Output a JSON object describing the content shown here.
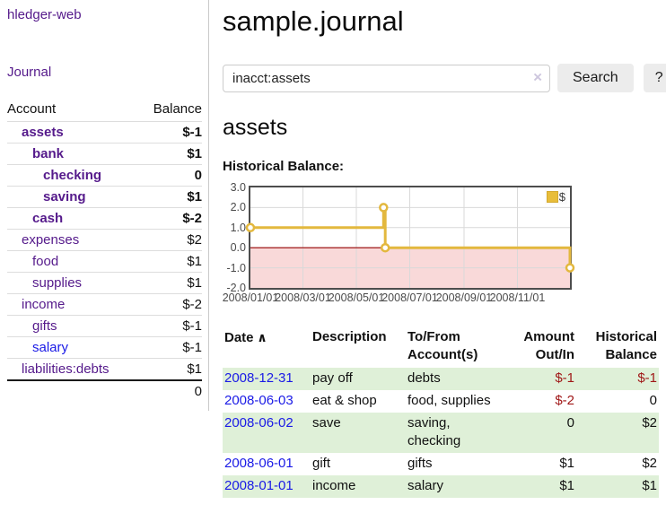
{
  "app": {
    "title": "hledger-web",
    "nav_journal": "Journal"
  },
  "sidebar": {
    "headers": {
      "account": "Account",
      "balance": "Balance"
    },
    "accounts": [
      {
        "name": "assets",
        "balance": "$-1",
        "indent": 1,
        "bold": true,
        "balance_color": "neg-strong"
      },
      {
        "name": "bank",
        "balance": "$1",
        "indent": 2,
        "bold": true
      },
      {
        "name": "checking",
        "balance": "0",
        "indent": 3,
        "bold": true
      },
      {
        "name": "saving",
        "balance": "$1",
        "indent": 3,
        "bold": true
      },
      {
        "name": "cash",
        "balance": "$-2",
        "indent": 2,
        "bold": true,
        "balance_color": "neg-strong"
      },
      {
        "name": "expenses",
        "balance": "$2",
        "indent": 1
      },
      {
        "name": "food",
        "balance": "$1",
        "indent": 2
      },
      {
        "name": "supplies",
        "balance": "$1",
        "indent": 2
      },
      {
        "name": "income",
        "balance": "$-2",
        "indent": 1,
        "balance_color": "neg-dim"
      },
      {
        "name": "gifts",
        "balance": "$-1",
        "indent": 2,
        "balance_color": "neg-dim"
      },
      {
        "name": "salary",
        "balance": "$-1",
        "indent": 2,
        "balance_color": "neg-dim",
        "link_color": "blue"
      },
      {
        "name": "liabilities:debts",
        "balance": "$1",
        "indent": 1
      }
    ],
    "total": "0"
  },
  "header": {
    "title": "sample.journal"
  },
  "search": {
    "value": "inacct:assets",
    "clear_icon": "×",
    "button": "Search",
    "help_button": "?"
  },
  "account_page": {
    "heading": "assets",
    "chart_label": "Historical Balance:"
  },
  "chart_data": {
    "type": "line",
    "step": true,
    "title": "Historical Balance:",
    "legend_label": "$",
    "legend_position": "top-right",
    "grid": true,
    "xrange": [
      "2008-01-01",
      "2008-12-31"
    ],
    "ylim": [
      -2,
      3
    ],
    "yticks": [
      "3.0",
      "2.0",
      "1.0",
      "0.0",
      "-1.0",
      "-2.0"
    ],
    "xticks": [
      {
        "label": "2008/01/01",
        "date": "2008-01-01"
      },
      {
        "label": "2008/03/01",
        "date": "2008-03-01"
      },
      {
        "label": "2008/05/01",
        "date": "2008-05-01"
      },
      {
        "label": "2008/07/01",
        "date": "2008-07-01"
      },
      {
        "label": "2008/09/01",
        "date": "2008-09-01"
      },
      {
        "label": "2008/11/01",
        "date": "2008-11-01"
      }
    ],
    "series": [
      {
        "name": "$",
        "points": [
          {
            "date": "2008-01-01",
            "value": 1
          },
          {
            "date": "2008-06-01",
            "value": 2
          },
          {
            "date": "2008-06-03",
            "value": 0
          },
          {
            "date": "2008-12-31",
            "value": -1
          }
        ]
      }
    ],
    "colors": {
      "line": "#e3b83e",
      "marker_fill": "#ffffff",
      "negative_fill": "#f9d9d9",
      "zero_line": "#990000",
      "grid": "#d9d9d9",
      "border": "#4d4d4d"
    }
  },
  "register": {
    "headers": [
      {
        "label": "Date",
        "sort_icon": "∧"
      },
      {
        "label": "Description"
      },
      {
        "label": "To/From Account(s)"
      },
      {
        "label": "Amount Out/In"
      },
      {
        "label": "Historical Balance"
      }
    ],
    "rows": [
      {
        "date": "2008-12-31",
        "description": "pay off",
        "accounts": "debts",
        "amount": "$-1",
        "balance": "$-1",
        "amount_negative": true,
        "balance_negative": true
      },
      {
        "date": "2008-06-03",
        "description": "eat & shop",
        "accounts": "food, supplies",
        "amount": "$-2",
        "balance": "0",
        "amount_negative": true,
        "balance_negative": false
      },
      {
        "date": "2008-06-02",
        "description": "save",
        "accounts": "saving, checking",
        "amount": "0",
        "balance": "$2",
        "amount_negative": false,
        "balance_negative": false
      },
      {
        "date": "2008-06-01",
        "description": "gift",
        "accounts": "gifts",
        "amount": "$1",
        "balance": "$2",
        "amount_negative": false,
        "balance_negative": false
      },
      {
        "date": "2008-01-01",
        "description": "income",
        "accounts": "salary",
        "amount": "$1",
        "balance": "$1",
        "amount_negative": false,
        "balance_negative": false
      }
    ]
  }
}
